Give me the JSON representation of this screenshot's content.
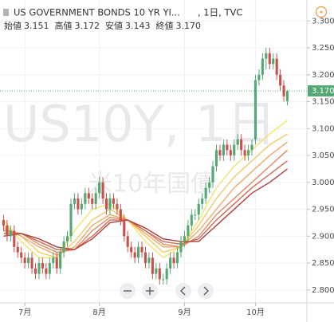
{
  "chart_data": {
    "type": "candlestick",
    "title": "US GOVERNMENT BONDS 10 YR YI...",
    "interval": ", 1日, TVC",
    "ohlc_legend": [
      {
        "label": "始値",
        "value": "3.151"
      },
      {
        "label": "高値",
        "value": "3.172"
      },
      {
        "label": "安値",
        "value": "3.143"
      },
      {
        "label": "終値",
        "value": "3.170"
      }
    ],
    "watermark": "US10Y, 1日",
    "watermark_sub": "米10年国債",
    "up_color": "#53a873",
    "down_color": "#c9514c",
    "open": [
      2.93,
      2.92,
      2.9,
      2.91,
      2.88,
      2.87,
      2.86,
      2.85,
      2.86,
      2.84,
      2.83,
      2.85,
      2.84,
      2.83,
      2.85,
      2.86,
      2.84,
      2.87,
      2.89,
      2.9,
      2.96,
      2.97,
      2.95,
      2.96,
      2.98,
      2.97,
      2.96,
      2.98,
      3.0,
      2.97,
      2.95,
      2.97,
      2.96,
      2.95,
      2.93,
      2.9,
      2.88,
      2.87,
      2.86,
      2.88,
      2.87,
      2.85,
      2.86,
      2.83,
      2.84,
      2.82,
      2.82,
      2.84,
      2.86,
      2.85,
      2.87,
      2.89,
      2.9,
      2.92,
      2.94,
      2.94,
      2.96,
      2.97,
      2.99,
      3.0,
      3.03,
      3.06,
      3.05,
      3.07,
      3.06,
      3.05,
      3.07,
      3.08,
      3.06,
      3.05,
      3.06,
      3.08,
      3.19,
      3.2,
      3.23,
      3.24,
      3.22,
      3.23,
      3.2,
      3.18,
      3.151
    ],
    "high": [
      2.94,
      2.93,
      2.92,
      2.92,
      2.89,
      2.88,
      2.87,
      2.87,
      2.87,
      2.85,
      2.86,
      2.86,
      2.85,
      2.86,
      2.87,
      2.87,
      2.88,
      2.9,
      2.91,
      2.97,
      2.98,
      2.98,
      2.97,
      2.99,
      2.99,
      2.98,
      2.99,
      3.01,
      3.01,
      2.98,
      2.98,
      2.98,
      2.97,
      2.96,
      2.94,
      2.91,
      2.89,
      2.88,
      2.89,
      2.89,
      2.88,
      2.87,
      2.87,
      2.85,
      2.85,
      2.83,
      2.85,
      2.87,
      2.87,
      2.88,
      2.9,
      2.91,
      2.93,
      2.95,
      2.95,
      2.97,
      2.98,
      3.0,
      3.01,
      3.04,
      3.07,
      3.07,
      3.08,
      3.08,
      3.07,
      3.08,
      3.09,
      3.09,
      3.07,
      3.07,
      3.08,
      3.2,
      3.21,
      3.24,
      3.25,
      3.25,
      3.24,
      3.24,
      3.21,
      3.19,
      3.172
    ],
    "low": [
      2.91,
      2.89,
      2.89,
      2.87,
      2.86,
      2.85,
      2.84,
      2.84,
      2.83,
      2.82,
      2.82,
      2.83,
      2.82,
      2.82,
      2.84,
      2.83,
      2.83,
      2.86,
      2.88,
      2.89,
      2.95,
      2.94,
      2.94,
      2.95,
      2.96,
      2.95,
      2.95,
      2.97,
      2.96,
      2.94,
      2.94,
      2.95,
      2.94,
      2.92,
      2.89,
      2.87,
      2.86,
      2.85,
      2.85,
      2.86,
      2.84,
      2.84,
      2.82,
      2.82,
      2.81,
      2.81,
      2.81,
      2.83,
      2.84,
      2.84,
      2.86,
      2.88,
      2.89,
      2.91,
      2.93,
      2.93,
      2.95,
      2.96,
      2.98,
      2.99,
      3.02,
      3.04,
      3.04,
      3.05,
      3.04,
      3.04,
      3.06,
      3.05,
      3.04,
      3.04,
      3.05,
      3.07,
      3.18,
      3.19,
      3.21,
      3.21,
      3.21,
      3.19,
      3.17,
      3.15,
      3.143
    ],
    "close": [
      2.92,
      2.9,
      2.91,
      2.88,
      2.87,
      2.86,
      2.85,
      2.86,
      2.84,
      2.83,
      2.85,
      2.84,
      2.83,
      2.85,
      2.86,
      2.84,
      2.87,
      2.89,
      2.9,
      2.96,
      2.97,
      2.95,
      2.96,
      2.98,
      2.97,
      2.96,
      2.98,
      3.0,
      2.97,
      2.95,
      2.97,
      2.96,
      2.95,
      2.93,
      2.9,
      2.88,
      2.87,
      2.86,
      2.88,
      2.87,
      2.85,
      2.86,
      2.83,
      2.84,
      2.82,
      2.82,
      2.84,
      2.86,
      2.85,
      2.87,
      2.89,
      2.9,
      2.92,
      2.94,
      2.94,
      2.96,
      2.97,
      2.99,
      3.0,
      3.03,
      3.06,
      3.05,
      3.07,
      3.06,
      3.05,
      3.07,
      3.08,
      3.06,
      3.05,
      3.06,
      3.07,
      3.19,
      3.2,
      3.23,
      3.24,
      3.22,
      3.23,
      3.2,
      3.18,
      3.16,
      3.17
    ],
    "series": [
      {
        "color": "#f3e46a",
        "x": [
          0,
          5,
          10,
          15,
          20,
          25,
          30,
          35,
          40,
          45,
          50,
          55,
          60,
          65,
          70,
          75,
          80
        ],
        "values": [
          2.93,
          2.89,
          2.86,
          2.86,
          2.91,
          2.95,
          2.96,
          2.93,
          2.89,
          2.86,
          2.88,
          2.93,
          2.99,
          3.03,
          3.06,
          3.09,
          3.115
        ]
      },
      {
        "color": "#f2c96a",
        "x": [
          0,
          5,
          10,
          15,
          20,
          25,
          30,
          35,
          40,
          45,
          50,
          55,
          60,
          65,
          70,
          75,
          80
        ],
        "values": [
          2.92,
          2.9,
          2.87,
          2.86,
          2.89,
          2.93,
          2.95,
          2.93,
          2.9,
          2.87,
          2.88,
          2.92,
          2.97,
          3.01,
          3.04,
          3.07,
          3.09
        ]
      },
      {
        "color": "#eeaa68",
        "x": [
          0,
          5,
          10,
          15,
          20,
          25,
          30,
          35,
          40,
          45,
          50,
          55,
          60,
          65,
          70,
          75,
          80
        ],
        "values": [
          2.915,
          2.9,
          2.88,
          2.865,
          2.88,
          2.92,
          2.94,
          2.93,
          2.905,
          2.88,
          2.88,
          2.91,
          2.95,
          2.99,
          3.02,
          3.05,
          3.075
        ]
      },
      {
        "color": "#e08c62",
        "x": [
          0,
          5,
          10,
          15,
          20,
          25,
          30,
          35,
          40,
          45,
          50,
          55,
          60,
          65,
          70,
          75,
          80
        ],
        "values": [
          2.91,
          2.905,
          2.885,
          2.87,
          2.875,
          2.91,
          2.935,
          2.93,
          2.91,
          2.885,
          2.88,
          2.9,
          2.94,
          2.97,
          3.0,
          3.03,
          3.06
        ]
      },
      {
        "color": "#cf6a57",
        "x": [
          0,
          5,
          10,
          15,
          20,
          25,
          30,
          35,
          40,
          45,
          50,
          55,
          60,
          65,
          70,
          75,
          80
        ],
        "values": [
          2.905,
          2.905,
          2.89,
          2.875,
          2.875,
          2.9,
          2.93,
          2.93,
          2.91,
          2.89,
          2.885,
          2.895,
          2.93,
          2.96,
          2.99,
          3.015,
          3.04
        ]
      },
      {
        "color": "#b0403a",
        "x": [
          0,
          5,
          10,
          15,
          20,
          25,
          30,
          35,
          40,
          45,
          50,
          55,
          60,
          65,
          70,
          75,
          80
        ],
        "values": [
          2.9,
          2.905,
          2.895,
          2.88,
          2.875,
          2.895,
          2.925,
          2.93,
          2.915,
          2.895,
          2.89,
          2.89,
          2.92,
          2.95,
          2.98,
          3.0,
          3.025
        ]
      }
    ],
    "last_price": {
      "value": 3.17,
      "label": "3.170"
    },
    "last_price_color": "#53a873",
    "xlim": [
      -1,
      85.5
    ],
    "xticks": [
      {
        "value": 6,
        "label": "7月"
      },
      {
        "value": 27,
        "label": "8月"
      },
      {
        "value": 51,
        "label": "9月"
      },
      {
        "value": 71,
        "label": "10月"
      }
    ],
    "ylim": [
      2.776,
      3.339
    ],
    "yticks": [
      {
        "value": 2.8,
        "label": "2.800"
      },
      {
        "value": 2.85,
        "label": "2.850"
      },
      {
        "value": 2.9,
        "label": "2.900"
      },
      {
        "value": 2.95,
        "label": "2.950"
      },
      {
        "value": 3.0,
        "label": "3.000"
      },
      {
        "value": 3.05,
        "label": "3.050"
      },
      {
        "value": 3.1,
        "label": "3.100"
      },
      {
        "value": 3.15,
        "label": "3.150"
      },
      {
        "value": 3.2,
        "label": "3.200"
      },
      {
        "value": 3.25,
        "label": "3.250"
      },
      {
        "value": 3.3,
        "label": "3.300"
      }
    ],
    "grid": true
  }
}
